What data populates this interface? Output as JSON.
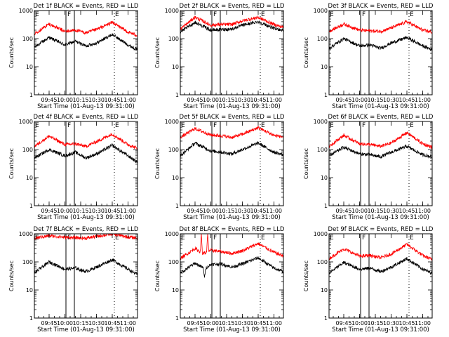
{
  "figure": {
    "ylabel": "Counts/sec",
    "xlabel": "Start Time (01-Aug-13 09:31:00)"
  },
  "chart_data": [
    {
      "type": "line",
      "title": "Det 1f BLACK = Events, RED = LLD",
      "xlabel": "Start Time (01-Aug-13 09:31:00)",
      "ylabel": "Counts/sec",
      "yscale": "log",
      "ylim": [
        1,
        1000
      ],
      "xlim": [
        "09:31",
        "11:09"
      ],
      "xticks": [
        "09:45",
        "10:00",
        "10:15",
        "10:30",
        "10:45",
        "11:00"
      ],
      "yticks": [
        "1",
        "10",
        "100",
        "1000"
      ],
      "legend": "title text",
      "grid": false,
      "markers": {
        "E": [
          "09:31",
          "10:47"
        ],
        "F": [
          "10:05"
        ]
      },
      "series": [
        {
          "name": "BLACK = Events",
          "color": "#000000",
          "x": [
            "09:31",
            "09:45",
            "10:00",
            "10:10",
            "10:20",
            "10:30",
            "10:45",
            "11:00",
            "11:09"
          ],
          "values": [
            50,
            110,
            60,
            80,
            55,
            70,
            140,
            60,
            40
          ]
        },
        {
          "name": "RED = LLD",
          "color": "#ff0000",
          "x": [
            "09:31",
            "09:45",
            "10:00",
            "10:10",
            "10:20",
            "10:30",
            "10:45",
            "11:00",
            "11:09"
          ],
          "values": [
            150,
            330,
            180,
            200,
            160,
            210,
            380,
            170,
            130
          ]
        }
      ]
    },
    {
      "type": "line",
      "title": "Det 2f BLACK = Events, RED = LLD",
      "xlabel": "Start Time (01-Aug-13 09:31:00)",
      "ylabel": "Counts/sec",
      "yscale": "log",
      "ylim": [
        1,
        1000
      ],
      "xlim": [
        "09:31",
        "11:09"
      ],
      "xticks": [
        "09:45",
        "10:00",
        "10:15",
        "10:30",
        "10:45",
        "11:00"
      ],
      "yticks": [
        "1",
        "10",
        "100",
        "1000"
      ],
      "legend": "title text",
      "grid": false,
      "markers": {
        "E": [
          "09:31",
          "10:47"
        ],
        "F": [
          "10:05"
        ]
      },
      "series": [
        {
          "name": "BLACK = Events",
          "color": "#000000",
          "x": [
            "09:31",
            "09:45",
            "10:00",
            "10:10",
            "10:20",
            "10:30",
            "10:45",
            "11:00",
            "11:09"
          ],
          "values": [
            170,
            380,
            200,
            210,
            220,
            300,
            400,
            230,
            200
          ]
        },
        {
          "name": "RED = LLD",
          "color": "#ff0000",
          "x": [
            "09:31",
            "09:45",
            "10:00",
            "10:10",
            "10:20",
            "10:30",
            "10:45",
            "11:00",
            "11:09"
          ],
          "values": [
            220,
            580,
            300,
            320,
            320,
            430,
            570,
            320,
            250
          ]
        }
      ]
    },
    {
      "type": "line",
      "title": "Det 3f BLACK = Events, RED = LLD",
      "xlabel": "Start Time (01-Aug-13 09:31:00)",
      "ylabel": "Counts/sec",
      "yscale": "log",
      "ylim": [
        1,
        1000
      ],
      "xlim": [
        "09:31",
        "11:09"
      ],
      "xticks": [
        "09:45",
        "10:00",
        "10:15",
        "10:30",
        "10:45",
        "11:00"
      ],
      "yticks": [
        "1",
        "10",
        "100",
        "1000"
      ],
      "legend": "title text",
      "grid": false,
      "markers": {
        "E": [
          "09:31",
          "10:47"
        ],
        "F": [
          "10:05"
        ]
      },
      "series": [
        {
          "name": "BLACK = Events",
          "color": "#000000",
          "x": [
            "09:31",
            "09:45",
            "10:00",
            "10:10",
            "10:20",
            "10:30",
            "10:45",
            "11:00",
            "11:09"
          ],
          "values": [
            45,
            100,
            55,
            60,
            45,
            70,
            110,
            55,
            40
          ]
        },
        {
          "name": "RED = LLD",
          "color": "#ff0000",
          "x": [
            "09:31",
            "09:45",
            "10:00",
            "10:10",
            "10:20",
            "10:30",
            "10:45",
            "11:00",
            "11:09"
          ],
          "values": [
            180,
            330,
            200,
            190,
            180,
            240,
            400,
            200,
            170
          ]
        }
      ]
    },
    {
      "type": "line",
      "title": "Det 4f BLACK = Events, RED = LLD",
      "xlabel": "Start Time (01-Aug-13 09:31:00)",
      "ylabel": "Counts/sec",
      "yscale": "log",
      "ylim": [
        1,
        1000
      ],
      "xlim": [
        "09:31",
        "11:09"
      ],
      "xticks": [
        "09:45",
        "10:00",
        "10:15",
        "10:30",
        "10:45",
        "11:00"
      ],
      "yticks": [
        "1",
        "10",
        "100",
        "1000"
      ],
      "legend": "title text",
      "grid": false,
      "markers": {
        "E": [
          "09:31",
          "10:47"
        ],
        "F": [
          "10:05"
        ]
      },
      "series": [
        {
          "name": "BLACK = Events",
          "color": "#000000",
          "x": [
            "09:31",
            "09:45",
            "10:00",
            "10:10",
            "10:20",
            "10:30",
            "10:45",
            "11:00",
            "11:09"
          ],
          "values": [
            50,
            100,
            60,
            80,
            50,
            70,
            140,
            60,
            35
          ]
        },
        {
          "name": "RED = LLD",
          "color": "#ff0000",
          "x": [
            "09:31",
            "09:45",
            "10:00",
            "10:10",
            "10:20",
            "10:30",
            "10:45",
            "11:00",
            "11:09"
          ],
          "values": [
            130,
            300,
            150,
            160,
            130,
            190,
            360,
            150,
            110
          ]
        }
      ]
    },
    {
      "type": "line",
      "title": "Det 5f BLACK = Events, RED = LLD",
      "xlabel": "Start Time (01-Aug-13 09:31:00)",
      "ylabel": "Counts/sec",
      "yscale": "log",
      "ylim": [
        1,
        1000
      ],
      "xlim": [
        "09:31",
        "11:09"
      ],
      "xticks": [
        "09:45",
        "10:00",
        "10:15",
        "10:30",
        "10:45",
        "11:00"
      ],
      "yticks": [
        "1",
        "10",
        "100",
        "1000"
      ],
      "legend": "title text",
      "grid": false,
      "markers": {
        "E": [
          "09:31",
          "10:47"
        ],
        "F": [
          "10:05"
        ]
      },
      "series": [
        {
          "name": "BLACK = Events",
          "color": "#000000",
          "x": [
            "09:31",
            "09:45",
            "10:00",
            "10:10",
            "10:20",
            "10:30",
            "10:45",
            "11:00",
            "11:09"
          ],
          "values": [
            60,
            170,
            90,
            80,
            70,
            100,
            170,
            80,
            65
          ]
        },
        {
          "name": "RED = LLD",
          "color": "#ff0000",
          "x": [
            "09:31",
            "09:45",
            "10:00",
            "10:10",
            "10:20",
            "10:30",
            "10:45",
            "11:00",
            "11:09"
          ],
          "values": [
            270,
            560,
            330,
            310,
            270,
            350,
            600,
            320,
            280
          ]
        }
      ]
    },
    {
      "type": "line",
      "title": "Det 6f BLACK = Events, RED = LLD",
      "xlabel": "Start Time (01-Aug-13 09:31:00)",
      "ylabel": "Counts/sec",
      "yscale": "log",
      "ylim": [
        1,
        1000
      ],
      "xlim": [
        "09:31",
        "11:09"
      ],
      "xticks": [
        "09:45",
        "10:00",
        "10:15",
        "10:30",
        "10:45",
        "11:00"
      ],
      "yticks": [
        "1",
        "10",
        "100",
        "1000"
      ],
      "legend": "title text",
      "grid": false,
      "markers": {
        "E": [
          "09:31",
          "10:47"
        ],
        "F": [
          "10:05"
        ]
      },
      "series": [
        {
          "name": "BLACK = Events",
          "color": "#000000",
          "x": [
            "09:31",
            "09:45",
            "10:00",
            "10:10",
            "10:20",
            "10:30",
            "10:45",
            "11:00",
            "11:09"
          ],
          "values": [
            60,
            120,
            70,
            65,
            55,
            80,
            130,
            65,
            55
          ]
        },
        {
          "name": "RED = LLD",
          "color": "#ff0000",
          "x": [
            "09:31",
            "09:45",
            "10:00",
            "10:10",
            "10:20",
            "10:30",
            "10:45",
            "11:00",
            "11:09"
          ],
          "values": [
            130,
            320,
            160,
            150,
            130,
            170,
            400,
            160,
            120
          ]
        }
      ]
    },
    {
      "type": "line",
      "title": "Det 7f BLACK = Events, RED = LLD",
      "xlabel": "Start Time (01-Aug-13 09:31:00)",
      "ylabel": "Counts/sec",
      "yscale": "log",
      "ylim": [
        1,
        1000
      ],
      "xlim": [
        "09:31",
        "11:09"
      ],
      "xticks": [
        "09:45",
        "10:00",
        "10:15",
        "10:30",
        "10:45",
        "11:00"
      ],
      "yticks": [
        "1",
        "10",
        "100",
        "1000"
      ],
      "legend": "title text",
      "grid": false,
      "markers": {
        "E": [
          "09:31",
          "10:47"
        ],
        "F": [
          "10:05"
        ]
      },
      "series": [
        {
          "name": "BLACK = Events",
          "color": "#000000",
          "x": [
            "09:31",
            "09:45",
            "10:00",
            "10:10",
            "10:20",
            "10:30",
            "10:45",
            "11:00",
            "11:09"
          ],
          "values": [
            40,
            100,
            55,
            60,
            45,
            65,
            120,
            55,
            35
          ]
        },
        {
          "name": "RED = LLD",
          "color": "#ff0000",
          "x": [
            "09:31",
            "09:45",
            "10:00",
            "10:10",
            "10:20",
            "10:30",
            "10:45",
            "11:00",
            "11:09"
          ],
          "values": [
            700,
            850,
            750,
            720,
            700,
            800,
            1000,
            760,
            720
          ]
        }
      ]
    },
    {
      "type": "line",
      "title": "Det 8f BLACK = Events, RED = LLD",
      "xlabel": "Start Time (01-Aug-13 09:31:00)",
      "ylabel": "Counts/sec",
      "yscale": "log",
      "ylim": [
        1,
        1000
      ],
      "xlim": [
        "09:31",
        "11:09"
      ],
      "xticks": [
        "09:45",
        "10:00",
        "10:15",
        "10:30",
        "10:45",
        "11:00"
      ],
      "yticks": [
        "1",
        "10",
        "100",
        "1000"
      ],
      "legend": "title text",
      "grid": false,
      "markers": {
        "E": [
          "09:31",
          "10:47"
        ],
        "F": [
          "10:05"
        ]
      },
      "series": [
        {
          "name": "BLACK = Events",
          "color": "#000000",
          "x": [
            "09:31",
            "09:45",
            "09:53",
            "09:54",
            "09:55",
            "10:00",
            "10:10",
            "10:20",
            "10:30",
            "10:45",
            "11:00",
            "11:09"
          ],
          "values": [
            40,
            90,
            60,
            25,
            60,
            80,
            85,
            65,
            85,
            140,
            60,
            45
          ]
        },
        {
          "name": "RED = LLD",
          "color": "#ff0000",
          "x": [
            "09:31",
            "09:45",
            "09:50",
            "09:51",
            "09:52",
            "09:56",
            "09:57",
            "09:58",
            "10:00",
            "10:10",
            "10:20",
            "10:30",
            "10:45",
            "11:00",
            "11:09"
          ],
          "values": [
            130,
            300,
            230,
            1000,
            200,
            220,
            1000,
            250,
            260,
            230,
            200,
            250,
            450,
            220,
            160
          ]
        }
      ]
    },
    {
      "type": "line",
      "title": "Det 9f BLACK = Events, RED = LLD",
      "xlabel": "Start Time (01-Aug-13 09:31:00)",
      "ylabel": "Counts/sec",
      "yscale": "log",
      "ylim": [
        1,
        1000
      ],
      "xlim": [
        "09:31",
        "11:09"
      ],
      "xticks": [
        "09:45",
        "10:00",
        "10:15",
        "10:30",
        "10:45",
        "11:00"
      ],
      "yticks": [
        "1",
        "10",
        "100",
        "1000"
      ],
      "legend": "title text",
      "grid": false,
      "markers": {
        "E": [
          "09:31",
          "10:47"
        ],
        "F": [
          "10:05"
        ]
      },
      "series": [
        {
          "name": "BLACK = Events",
          "color": "#000000",
          "x": [
            "09:31",
            "09:45",
            "10:00",
            "10:10",
            "10:20",
            "10:30",
            "10:45",
            "11:00",
            "11:09"
          ],
          "values": [
            40,
            95,
            55,
            60,
            45,
            65,
            130,
            55,
            40
          ]
        },
        {
          "name": "RED = LLD",
          "color": "#ff0000",
          "x": [
            "09:31",
            "09:45",
            "10:00",
            "10:10",
            "10:20",
            "10:30",
            "10:45",
            "11:00",
            "11:09"
          ],
          "values": [
            130,
            290,
            160,
            170,
            140,
            190,
            420,
            170,
            120
          ]
        }
      ]
    }
  ]
}
